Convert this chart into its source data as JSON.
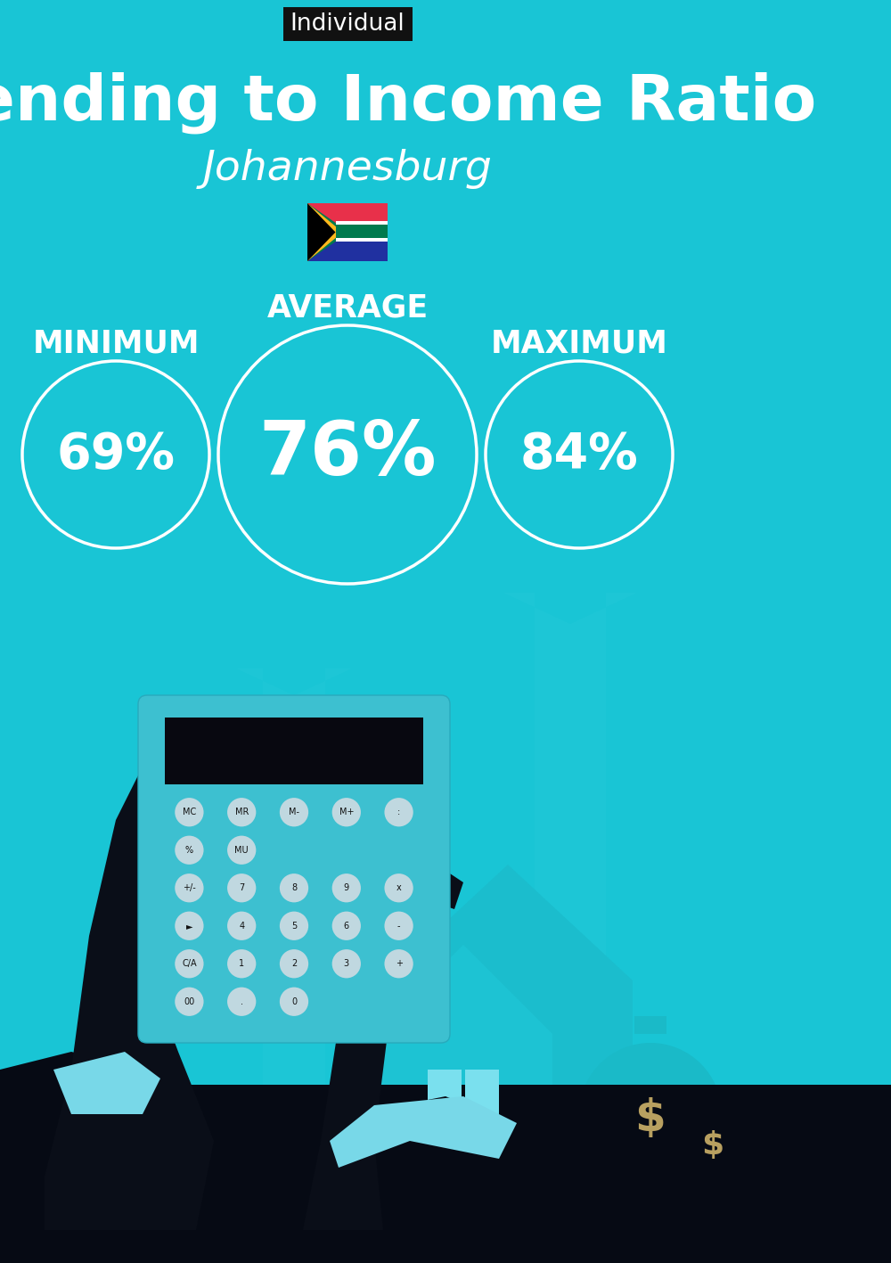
{
  "bg_color": "#19C5D5",
  "title": "Spending to Income Ratio",
  "subtitle": "Johannesburg",
  "tag_label": "Individual",
  "tag_bg": "#111111",
  "tag_text_color": "#ffffff",
  "title_color": "#ffffff",
  "subtitle_color": "#ffffff",
  "label_color": "#ffffff",
  "circle_edge_color": "#ffffff",
  "min_label": "MINIMUM",
  "avg_label": "AVERAGE",
  "max_label": "MAXIMUM",
  "min_value": "69%",
  "avg_value": "76%",
  "max_value": "84%",
  "title_fontsize": 52,
  "subtitle_fontsize": 34,
  "label_fontsize": 25,
  "tag_fontsize": 19,
  "min_fontsize": 40,
  "avg_fontsize": 60,
  "max_fontsize": 40,
  "arrow_color": "#25C8D8",
  "house_color": "#1DBFCF",
  "house_light": "#7DE8F0",
  "hand_color": "#0A0E18",
  "jacket_color": "#060A14",
  "cuff_color": "#78D8E8",
  "calc_body": "#3DC0D0",
  "calc_screen": "#080810",
  "btn_color": "#C0D8E0",
  "money_bag_color": "#1ABAC8",
  "money_bag2_color": "#1ABAC8",
  "bill_color": "#1ABAC8",
  "dollar_color": "#B8A060"
}
